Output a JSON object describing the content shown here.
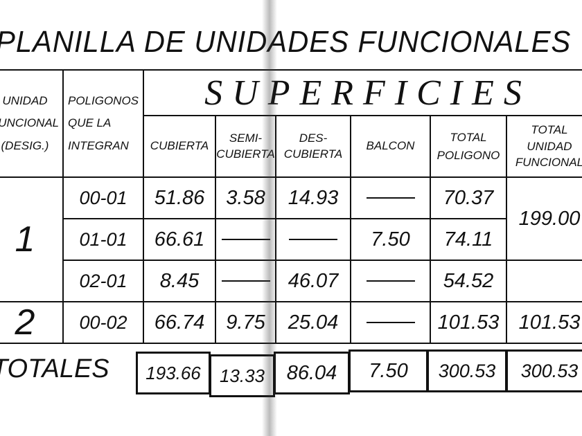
{
  "title": "PLANILLA DE UNIDADES FUNCIONALES",
  "headers": {
    "unidad_funcional": [
      "UNIDAD",
      "FUNCIONAL",
      "(DESIG.)"
    ],
    "poligonos": [
      "POLIGONOS",
      "QUE LA",
      "INTEGRAN"
    ],
    "superficies": "SUPERFICIES",
    "cubierta": "CUBIERTA",
    "semicubierta": [
      "SEMI-",
      "CUBIERTA"
    ],
    "descubierta": [
      "DES-",
      "CUBIERTA"
    ],
    "balcon": "BALCON",
    "total_poligono": [
      "TOTAL",
      "POLIGONO"
    ],
    "total_unidad": [
      "TOTAL",
      "UNIDAD",
      "FUNCIONAL"
    ]
  },
  "units": [
    {
      "id": "1",
      "total": "199.00"
    },
    {
      "id": "2",
      "total": "101.53"
    }
  ],
  "rows": [
    {
      "poligono": "00-01",
      "cubierta": "51.86",
      "semi": "3.58",
      "des": "14.93",
      "balcon": "—",
      "total": "70.37"
    },
    {
      "poligono": "01-01",
      "cubierta": "66.61",
      "semi": "—",
      "des": "—",
      "balcon": "7.50",
      "total": "74.11"
    },
    {
      "poligono": "02-01",
      "cubierta": "8.45",
      "semi": "—",
      "des": "46.07",
      "balcon": "—",
      "total": "54.52"
    },
    {
      "poligono": "00-02",
      "cubierta": "66.74",
      "semi": "9.75",
      "des": "25.04",
      "balcon": "—",
      "total": "101.53"
    }
  ],
  "totales": {
    "label": "TOTALES",
    "cubierta": "193.66",
    "semi": "13.33",
    "des": "86.04",
    "balcon": "7.50",
    "total_poligono": "300.53",
    "total_unidad": "300.53"
  }
}
